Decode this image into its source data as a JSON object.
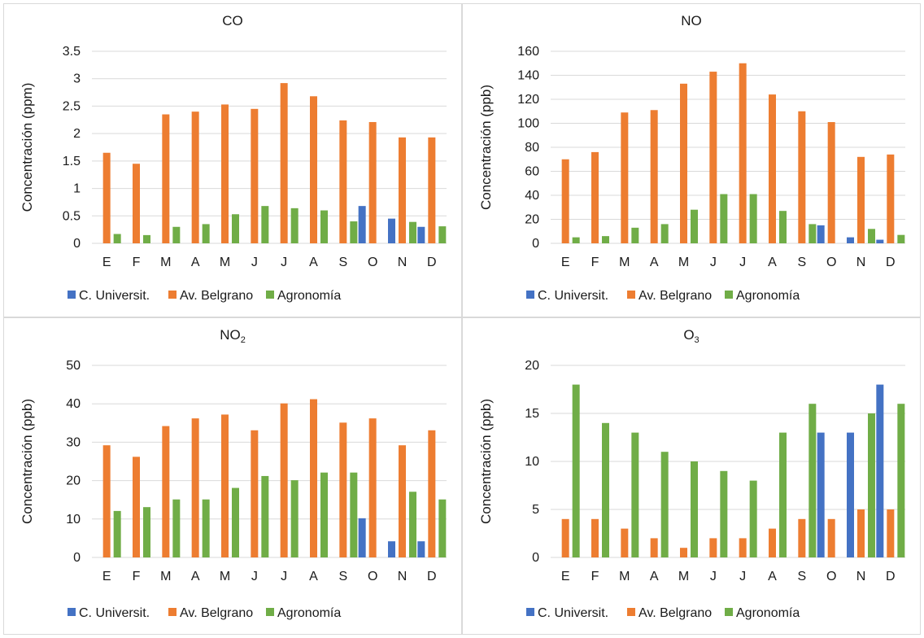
{
  "colors": {
    "c_universit": "#4472C4",
    "av_belgrano": "#ED7D31",
    "agronomia": "#70AD47"
  },
  "legend": [
    "C. Universit.",
    "Av. Belgrano",
    "Agronomía"
  ],
  "chart_data": [
    {
      "type": "bar",
      "title": "CO",
      "ylabel": "Concentración (ppm)",
      "ylim": [
        0,
        3.5
      ],
      "yticks": [
        "0",
        "0.5",
        "1",
        "1.5",
        "2",
        "2.5",
        "3",
        "3.5"
      ],
      "grid": true,
      "legend_position": "bottom",
      "categories": [
        "E",
        "F",
        "M",
        "A",
        "M",
        "J",
        "J",
        "A",
        "S",
        "O",
        "N",
        "D"
      ],
      "series": [
        {
          "name": "C. Universit.",
          "values": [
            0,
            0,
            0,
            0,
            0,
            0,
            0,
            0,
            0,
            0.68,
            0.45,
            0.3
          ]
        },
        {
          "name": "Av. Belgrano",
          "values": [
            1.65,
            1.45,
            2.35,
            2.4,
            2.53,
            2.45,
            2.92,
            2.68,
            2.24,
            2.21,
            1.93,
            1.93
          ]
        },
        {
          "name": "Agronomía",
          "values": [
            0.17,
            0.15,
            0.3,
            0.35,
            0.53,
            0.68,
            0.64,
            0.6,
            0.4,
            0,
            0.39,
            0.31
          ]
        }
      ]
    },
    {
      "type": "bar",
      "title": "NO",
      "ylabel": "Concentración (ppb)",
      "ylim": [
        0,
        160
      ],
      "yticks": [
        "0",
        "20",
        "40",
        "60",
        "80",
        "100",
        "120",
        "140",
        "160"
      ],
      "grid": true,
      "legend_position": "bottom",
      "categories": [
        "E",
        "F",
        "M",
        "A",
        "M",
        "J",
        "J",
        "A",
        "S",
        "O",
        "N",
        "D"
      ],
      "series": [
        {
          "name": "C. Universit.",
          "values": [
            0,
            0,
            0,
            0,
            0,
            0,
            0,
            0,
            0,
            15,
            5,
            3
          ]
        },
        {
          "name": "Av. Belgrano",
          "values": [
            70,
            76,
            109,
            111,
            133,
            143,
            150,
            124,
            110,
            101,
            72,
            74
          ]
        },
        {
          "name": "Agronomía",
          "values": [
            5,
            6,
            13,
            16,
            28,
            41,
            41,
            27,
            16,
            0,
            12,
            7
          ]
        }
      ]
    },
    {
      "type": "bar",
      "title_main": "NO",
      "title_sub": "2",
      "ylabel": "Concentración (ppb)",
      "ylim": [
        0,
        50
      ],
      "yticks": [
        "0",
        "10",
        "20",
        "30",
        "40",
        "50"
      ],
      "grid": true,
      "legend_position": "bottom",
      "categories": [
        "E",
        "F",
        "M",
        "A",
        "M",
        "J",
        "J",
        "A",
        "S",
        "O",
        "N",
        "D"
      ],
      "series": [
        {
          "name": "C. Universit.",
          "values": [
            0,
            0,
            0,
            0,
            0,
            0,
            0,
            0,
            0,
            10.2,
            4.2,
            4.2
          ]
        },
        {
          "name": "Av. Belgrano",
          "values": [
            29.2,
            26.2,
            34.2,
            36.2,
            37.2,
            33.1,
            40.1,
            41.2,
            35.1,
            36.2,
            29.2,
            33.1
          ]
        },
        {
          "name": "Agronomía",
          "values": [
            12.1,
            13.1,
            15.1,
            15.1,
            18.1,
            21.2,
            20.1,
            22.1,
            22.1,
            0,
            17.1,
            15.1
          ]
        }
      ]
    },
    {
      "type": "bar",
      "title_main": "O",
      "title_sub": "3",
      "ylabel": "Concentración (ppb)",
      "ylim": [
        0,
        20
      ],
      "yticks": [
        "0",
        "5",
        "10",
        "15",
        "20"
      ],
      "grid": true,
      "legend_position": "bottom",
      "categories": [
        "E",
        "F",
        "M",
        "A",
        "M",
        "J",
        "J",
        "A",
        "S",
        "O",
        "N",
        "D"
      ],
      "series": [
        {
          "name": "C. Universit.",
          "values": [
            0,
            0,
            0,
            0,
            0,
            0,
            0,
            0,
            0,
            13,
            13,
            18
          ]
        },
        {
          "name": "Av. Belgrano",
          "values": [
            4,
            4,
            3,
            2,
            1,
            2,
            2,
            3,
            4,
            4,
            5,
            5
          ]
        },
        {
          "name": "Agronomía",
          "values": [
            18,
            14,
            13,
            11,
            10,
            9,
            8,
            13,
            16,
            0,
            15,
            16
          ]
        }
      ]
    }
  ]
}
